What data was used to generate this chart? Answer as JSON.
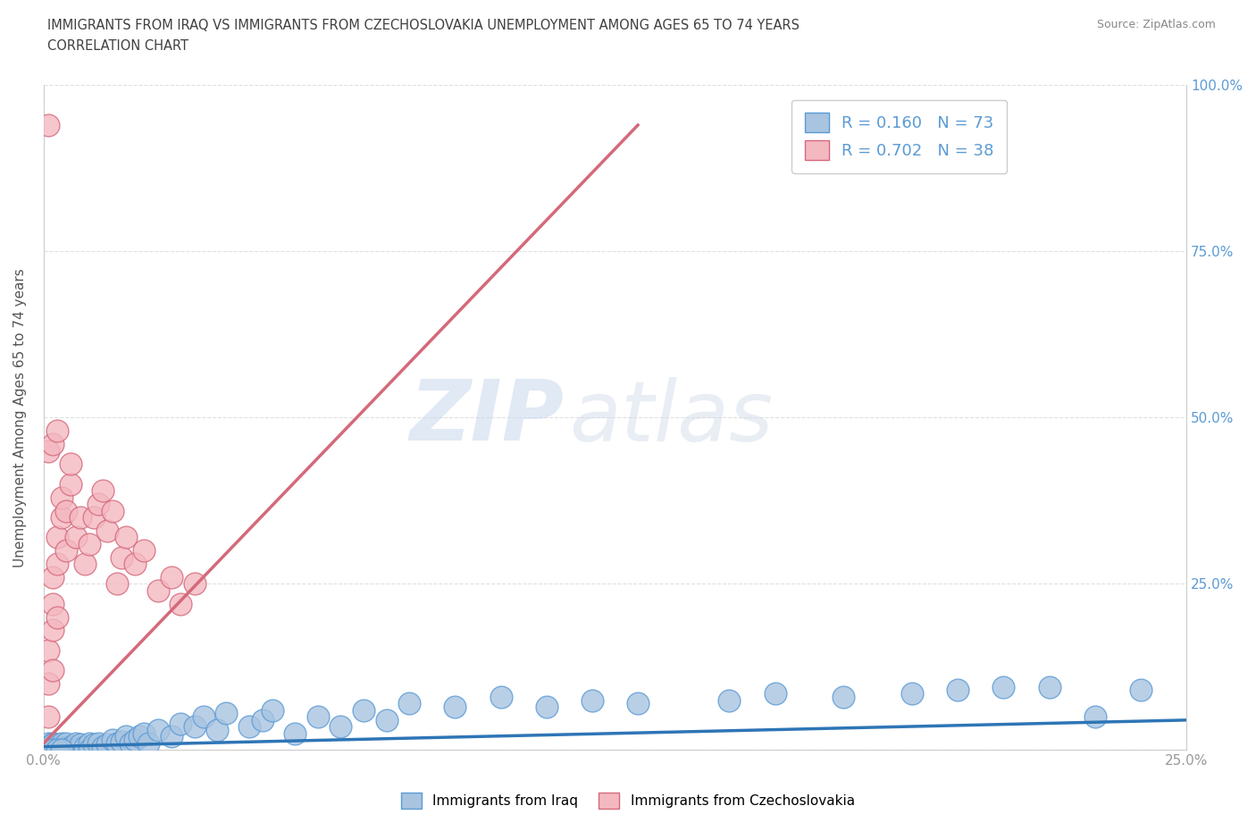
{
  "title_line1": "IMMIGRANTS FROM IRAQ VS IMMIGRANTS FROM CZECHOSLOVAKIA UNEMPLOYMENT AMONG AGES 65 TO 74 YEARS",
  "title_line2": "CORRELATION CHART",
  "source_text": "Source: ZipAtlas.com",
  "ylabel": "Unemployment Among Ages 65 to 74 years",
  "xlim": [
    0,
    0.25
  ],
  "ylim": [
    0,
    1.0
  ],
  "xticks": [
    0.0,
    0.05,
    0.1,
    0.15,
    0.2,
    0.25
  ],
  "xtick_labels": [
    "0.0%",
    "",
    "",
    "",
    "",
    "25.0%"
  ],
  "yticks": [
    0.0,
    0.25,
    0.5,
    0.75,
    1.0
  ],
  "ytick_labels": [
    "",
    "25.0%",
    "50.0%",
    "75.0%",
    "100.0%"
  ],
  "watermark_zip": "ZIP",
  "watermark_atlas": "atlas",
  "iraq_color": "#a8c4e0",
  "iraq_edge_color": "#5b9bd5",
  "czech_color": "#f4b8c1",
  "czech_edge_color": "#d4697a",
  "iraq_trend_color": "#2e75b6",
  "czech_trend_color": "#d4697a",
  "R_iraq": 0.16,
  "N_iraq": 73,
  "R_czech": 0.702,
  "N_czech": 38,
  "legend_label_iraq": "Immigrants from Iraq",
  "legend_label_czech": "Immigrants from Czechoslovakia",
  "iraq_x": [
    0.001,
    0.001,
    0.001,
    0.002,
    0.002,
    0.002,
    0.002,
    0.003,
    0.003,
    0.003,
    0.003,
    0.003,
    0.004,
    0.004,
    0.004,
    0.005,
    0.005,
    0.005,
    0.006,
    0.006,
    0.007,
    0.007,
    0.008,
    0.008,
    0.009,
    0.01,
    0.01,
    0.011,
    0.012,
    0.013,
    0.014,
    0.015,
    0.016,
    0.017,
    0.018,
    0.019,
    0.02,
    0.021,
    0.022,
    0.023,
    0.025,
    0.028,
    0.03,
    0.033,
    0.035,
    0.038,
    0.04,
    0.045,
    0.048,
    0.05,
    0.055,
    0.06,
    0.065,
    0.07,
    0.075,
    0.08,
    0.09,
    0.1,
    0.11,
    0.12,
    0.13,
    0.15,
    0.16,
    0.175,
    0.19,
    0.2,
    0.21,
    0.22,
    0.23,
    0.24,
    0.002,
    0.003,
    0.004
  ],
  "iraq_y": [
    0.005,
    0.01,
    0.0,
    0.005,
    0.01,
    0.008,
    0.0,
    0.0,
    0.005,
    0.008,
    0.003,
    0.0,
    0.005,
    0.01,
    0.0,
    0.005,
    0.01,
    0.0,
    0.005,
    0.0,
    0.005,
    0.01,
    0.003,
    0.008,
    0.005,
    0.01,
    0.0,
    0.008,
    0.01,
    0.005,
    0.008,
    0.015,
    0.01,
    0.012,
    0.02,
    0.01,
    0.015,
    0.02,
    0.025,
    0.01,
    0.03,
    0.02,
    0.04,
    0.035,
    0.05,
    0.03,
    0.055,
    0.035,
    0.045,
    0.06,
    0.025,
    0.05,
    0.035,
    0.06,
    0.045,
    0.07,
    0.065,
    0.08,
    0.065,
    0.075,
    0.07,
    0.075,
    0.085,
    0.08,
    0.085,
    0.09,
    0.095,
    0.095,
    0.05,
    0.09,
    0.0,
    0.0,
    0.0
  ],
  "czech_x": [
    0.001,
    0.001,
    0.001,
    0.002,
    0.002,
    0.002,
    0.002,
    0.003,
    0.003,
    0.003,
    0.004,
    0.004,
    0.005,
    0.005,
    0.006,
    0.006,
    0.007,
    0.008,
    0.009,
    0.01,
    0.011,
    0.012,
    0.013,
    0.014,
    0.015,
    0.016,
    0.017,
    0.018,
    0.02,
    0.022,
    0.025,
    0.028,
    0.03,
    0.033,
    0.001,
    0.002,
    0.003,
    0.001
  ],
  "czech_y": [
    0.05,
    0.1,
    0.15,
    0.12,
    0.18,
    0.22,
    0.26,
    0.2,
    0.28,
    0.32,
    0.35,
    0.38,
    0.3,
    0.36,
    0.4,
    0.43,
    0.32,
    0.35,
    0.28,
    0.31,
    0.35,
    0.37,
    0.39,
    0.33,
    0.36,
    0.25,
    0.29,
    0.32,
    0.28,
    0.3,
    0.24,
    0.26,
    0.22,
    0.25,
    0.45,
    0.46,
    0.48,
    0.94
  ],
  "iraq_trend_x": [
    0.0,
    0.25
  ],
  "iraq_trend_y": [
    0.005,
    0.045
  ],
  "czech_trend_x": [
    0.0,
    0.13
  ],
  "czech_trend_y": [
    0.01,
    0.94
  ],
  "background_color": "#ffffff",
  "grid_color": "#e0e0e0",
  "title_color": "#404040",
  "tick_label_color": "#999999",
  "right_tick_color": "#5b9bd5"
}
